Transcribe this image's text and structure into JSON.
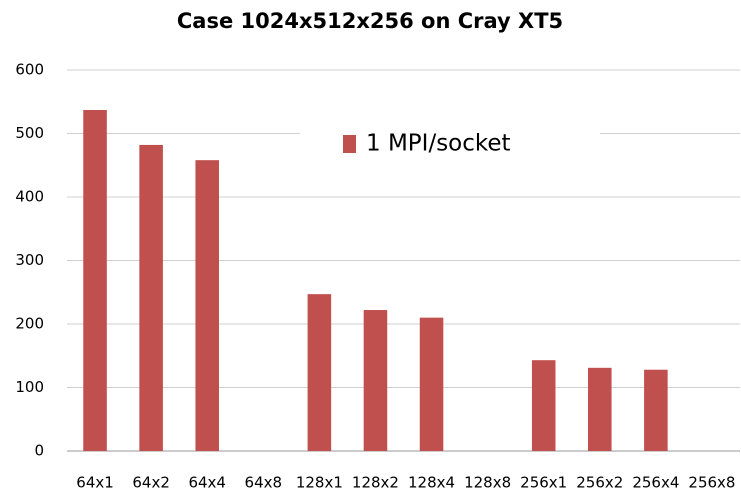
{
  "chart_data": {
    "type": "bar",
    "title": "Case 1024x512x256 on Cray XT5",
    "categories": [
      "64x1",
      "64x2",
      "64x4",
      "64x8",
      "128x1",
      "128x2",
      "128x4",
      "128x8",
      "256x1",
      "256x2",
      "256x4",
      "256x8"
    ],
    "series": [
      {
        "name": "1 MPI/socket",
        "color": "#c0504d",
        "values": [
          537,
          482,
          458,
          null,
          247,
          222,
          210,
          null,
          143,
          131,
          128,
          null
        ]
      }
    ],
    "ylim": [
      0,
      600
    ],
    "yticks": [
      0,
      100,
      200,
      300,
      400,
      500,
      600
    ],
    "grid": true,
    "legend": "upper center"
  }
}
